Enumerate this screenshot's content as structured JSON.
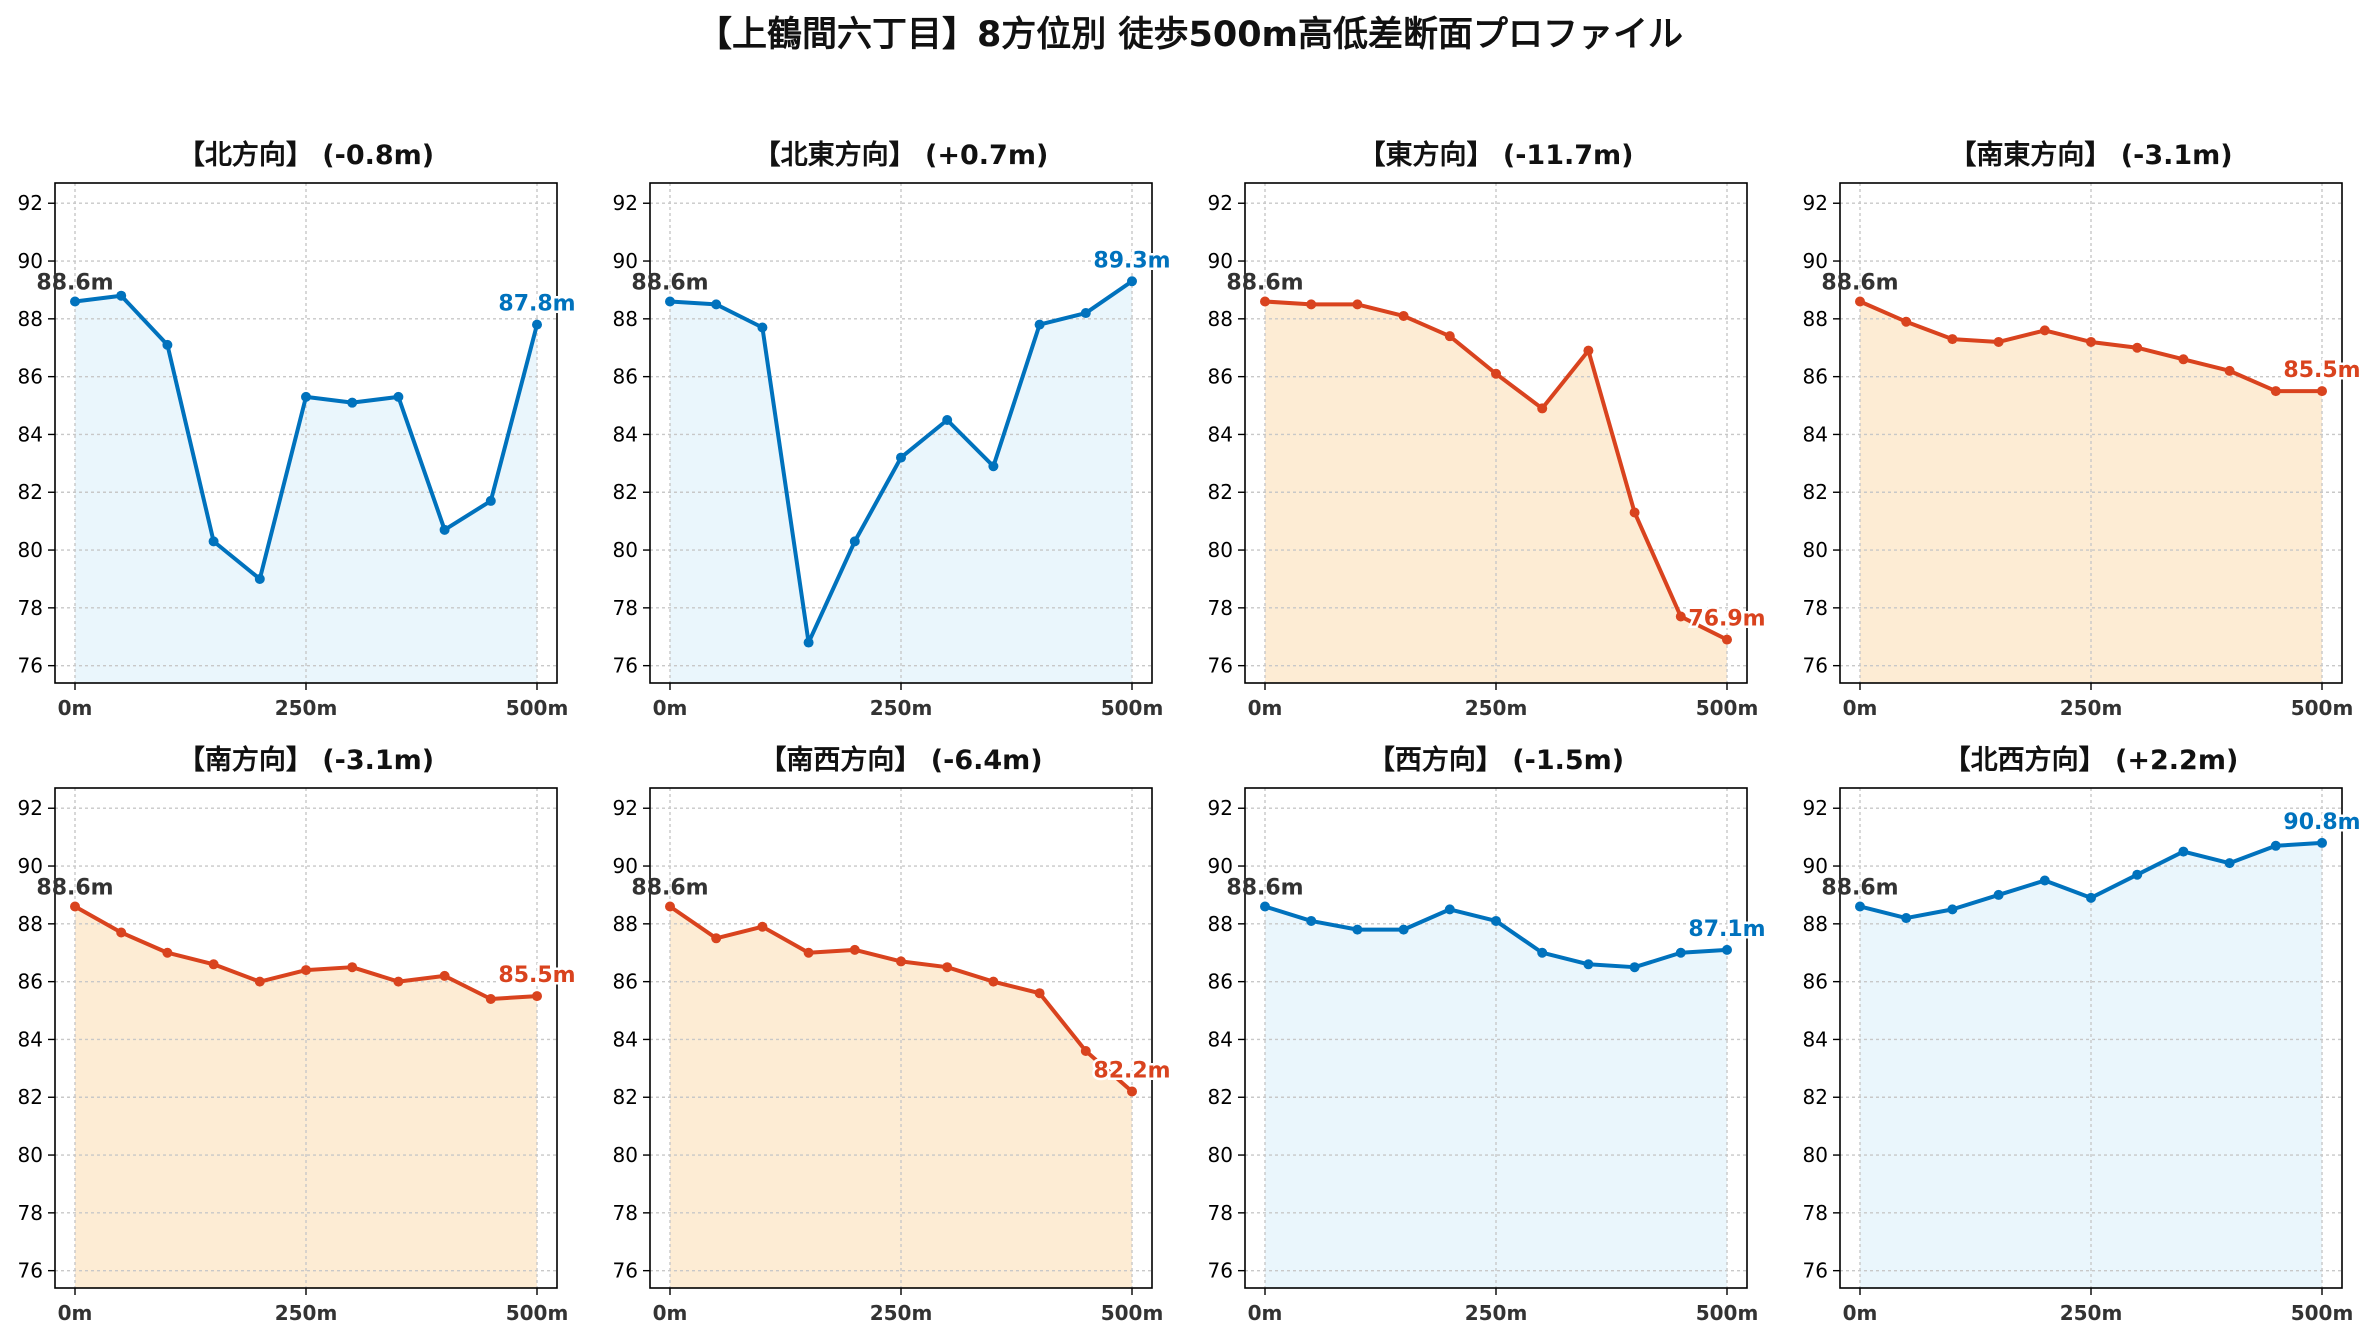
{
  "suptitle": "【上鶴間六丁目】8方位別 徒歩500m高低差断面プロファイル",
  "colors": {
    "up": "#0072bd",
    "down": "#d9431e",
    "up_fill": "#eaf6fc",
    "down_fill": "#fdecd4",
    "start_label": "#333333"
  },
  "chart_data": [
    {
      "type": "area",
      "title": "【北方向】 (-0.8m)",
      "trend": "down_flat",
      "color_key": "up",
      "x": [
        0,
        50,
        100,
        150,
        200,
        250,
        300,
        350,
        400,
        450,
        500
      ],
      "values": [
        88.6,
        88.8,
        87.1,
        80.3,
        79.0,
        85.3,
        85.1,
        85.3,
        80.7,
        81.7,
        87.8
      ],
      "xticks": [
        "0m",
        "250m",
        "500m"
      ],
      "yticks": [
        76,
        78,
        80,
        82,
        84,
        86,
        88,
        90,
        92
      ],
      "ylim": [
        75.4,
        92.7
      ],
      "start_label": "88.6m",
      "end_label": "87.8m",
      "grid": true
    },
    {
      "type": "area",
      "title": "【北東方向】 (+0.7m)",
      "color_key": "up",
      "x": [
        0,
        50,
        100,
        150,
        200,
        250,
        300,
        350,
        400,
        450,
        500
      ],
      "values": [
        88.6,
        88.5,
        87.7,
        76.8,
        80.3,
        83.2,
        84.5,
        82.9,
        87.8,
        88.2,
        89.3
      ],
      "xticks": [
        "0m",
        "250m",
        "500m"
      ],
      "yticks": [
        76,
        78,
        80,
        82,
        84,
        86,
        88,
        90,
        92
      ],
      "ylim": [
        75.4,
        92.7
      ],
      "start_label": "88.6m",
      "end_label": "89.3m",
      "grid": true
    },
    {
      "type": "area",
      "title": "【東方向】 (-11.7m)",
      "color_key": "down",
      "x": [
        0,
        50,
        100,
        150,
        200,
        250,
        300,
        350,
        400,
        450,
        500
      ],
      "values": [
        88.6,
        88.5,
        88.5,
        88.1,
        87.4,
        86.1,
        84.9,
        86.9,
        81.3,
        77.7,
        76.9
      ],
      "xticks": [
        "0m",
        "250m",
        "500m"
      ],
      "yticks": [
        76,
        78,
        80,
        82,
        84,
        86,
        88,
        90,
        92
      ],
      "ylim": [
        75.4,
        92.7
      ],
      "start_label": "88.6m",
      "end_label": "76.9m",
      "grid": true
    },
    {
      "type": "area",
      "title": "【南東方向】 (-3.1m)",
      "color_key": "down",
      "x": [
        0,
        50,
        100,
        150,
        200,
        250,
        300,
        350,
        400,
        450,
        500
      ],
      "values": [
        88.6,
        87.9,
        87.3,
        87.2,
        87.6,
        87.2,
        87.0,
        86.6,
        86.2,
        85.5,
        85.5
      ],
      "xticks": [
        "0m",
        "250m",
        "500m"
      ],
      "yticks": [
        76,
        78,
        80,
        82,
        84,
        86,
        88,
        90,
        92
      ],
      "ylim": [
        75.4,
        92.7
      ],
      "start_label": "88.6m",
      "end_label": "85.5m",
      "grid": true
    },
    {
      "type": "area",
      "title": "【南方向】 (-3.1m)",
      "color_key": "down",
      "x": [
        0,
        50,
        100,
        150,
        200,
        250,
        300,
        350,
        400,
        450,
        500
      ],
      "values": [
        88.6,
        87.7,
        87.0,
        86.6,
        86.0,
        86.4,
        86.5,
        86.0,
        86.2,
        85.4,
        85.5
      ],
      "xticks": [
        "0m",
        "250m",
        "500m"
      ],
      "yticks": [
        76,
        78,
        80,
        82,
        84,
        86,
        88,
        90,
        92
      ],
      "ylim": [
        75.4,
        92.7
      ],
      "start_label": "88.6m",
      "end_label": "85.5m",
      "grid": true
    },
    {
      "type": "area",
      "title": "【南西方向】 (-6.4m)",
      "color_key": "down",
      "x": [
        0,
        50,
        100,
        150,
        200,
        250,
        300,
        350,
        400,
        450,
        500
      ],
      "values": [
        88.6,
        87.5,
        87.9,
        87.0,
        87.1,
        86.7,
        86.5,
        86.0,
        85.6,
        83.6,
        82.2
      ],
      "xticks": [
        "0m",
        "250m",
        "500m"
      ],
      "yticks": [
        76,
        78,
        80,
        82,
        84,
        86,
        88,
        90,
        92
      ],
      "ylim": [
        75.4,
        92.7
      ],
      "start_label": "88.6m",
      "end_label": "82.2m",
      "grid": true
    },
    {
      "type": "area",
      "title": "【西方向】 (-1.5m)",
      "color_key": "up",
      "x": [
        0,
        50,
        100,
        150,
        200,
        250,
        300,
        350,
        400,
        450,
        500
      ],
      "values": [
        88.6,
        88.1,
        87.8,
        87.8,
        88.5,
        88.1,
        87.0,
        86.6,
        86.5,
        87.0,
        87.1
      ],
      "xticks": [
        "0m",
        "250m",
        "500m"
      ],
      "yticks": [
        76,
        78,
        80,
        82,
        84,
        86,
        88,
        90,
        92
      ],
      "ylim": [
        75.4,
        92.7
      ],
      "start_label": "88.6m",
      "end_label": "87.1m",
      "grid": true
    },
    {
      "type": "area",
      "title": "【北西方向】 (+2.2m)",
      "color_key": "up",
      "x": [
        0,
        50,
        100,
        150,
        200,
        250,
        300,
        350,
        400,
        450,
        500
      ],
      "values": [
        88.6,
        88.2,
        88.5,
        89.0,
        89.5,
        88.9,
        89.7,
        90.5,
        90.1,
        90.7,
        90.8
      ],
      "xticks": [
        "0m",
        "250m",
        "500m"
      ],
      "yticks": [
        76,
        78,
        80,
        82,
        84,
        86,
        88,
        90,
        92
      ],
      "ylim": [
        75.4,
        92.7
      ],
      "start_label": "88.6m",
      "end_label": "90.8m",
      "grid": true
    }
  ]
}
